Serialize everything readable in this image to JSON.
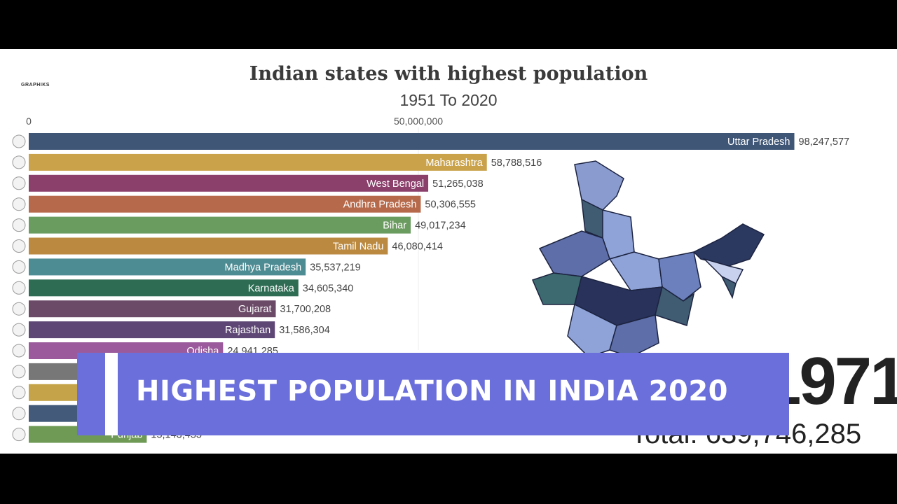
{
  "logo_text": "GRAPHIKS",
  "banner_text": "HIGHEST POPULATION IN INDIA 2020",
  "year_label": "1971",
  "total_label": "Total: 639,746,285",
  "chart_data": {
    "type": "bar",
    "orientation": "horizontal",
    "title": "Indian states with highest population",
    "subtitle": "1951 To 2020",
    "xlim": [
      0,
      100000000
    ],
    "ticks": [
      {
        "value": 0,
        "label": "0"
      },
      {
        "value": 50000000,
        "label": "50,000,000"
      }
    ],
    "categories": [
      "Uttar Pradesh",
      "Maharashtra",
      "West Bengal",
      "Andhra Pradesh",
      "Bihar",
      "Tamil Nadu",
      "Madhya Pradesh",
      "Karnataka",
      "Gujarat",
      "Rajasthan",
      "Odisha",
      "",
      "",
      "",
      "Punjab"
    ],
    "values": [
      98247577,
      58788516,
      51265038,
      50306555,
      49017234,
      46080414,
      35537219,
      34605340,
      31700208,
      31586304,
      24941285,
      21000000,
      19500000,
      16500000,
      15143455
    ],
    "value_labels": [
      "98,247,577",
      "58,788,516",
      "51,265,038",
      "50,306,555",
      "49,017,234",
      "46,080,414",
      "35,537,219",
      "34,605,340",
      "31,700,208",
      "31,586,304",
      "24,941,285",
      "",
      "",
      "",
      "15,143,455"
    ],
    "colors": [
      "#3f5677",
      "#c9a24a",
      "#8b3f6b",
      "#b66a4b",
      "#6a9b5f",
      "#bb8a40",
      "#4e8c93",
      "#2e6d54",
      "#6b4a68",
      "#5e4775",
      "#9b5a9b",
      "#777777",
      "#c5a348",
      "#435a7b",
      "#6f9a55"
    ],
    "grid": false,
    "legend": "none"
  }
}
